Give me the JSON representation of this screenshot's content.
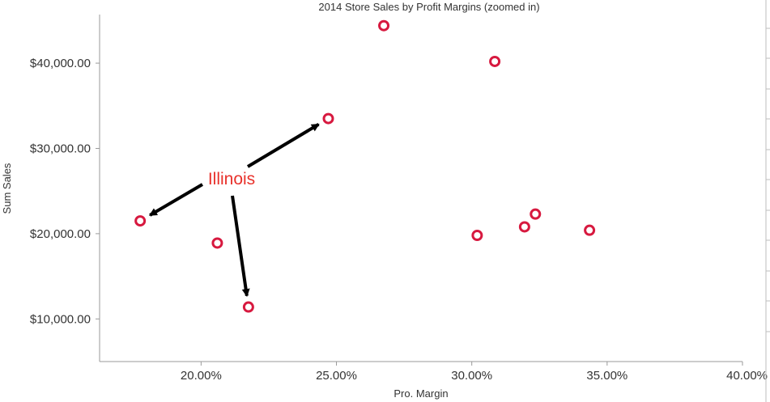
{
  "chart_data": {
    "type": "scatter",
    "title": "2014 Store Sales by Profit Margins (zoomed in)",
    "xlabel": "Pro. Margin",
    "ylabel": "Sum Sales",
    "xlim": [
      0.1625,
      0.4
    ],
    "ylim": [
      5000,
      45700
    ],
    "x_ticks": [
      0.2,
      0.25,
      0.3,
      0.35,
      0.4
    ],
    "x_tick_labels": [
      "20.00%",
      "25.00%",
      "30.00%",
      "35.00%",
      "40.00%"
    ],
    "y_ticks": [
      10000,
      20000,
      30000,
      40000
    ],
    "y_tick_labels": [
      "$10,000.00",
      "$20,000.00",
      "$30,000.00",
      "$40,000.00"
    ],
    "grid": false,
    "marker_color": "#d7193f",
    "points": [
      {
        "x": 0.1775,
        "y": 21500
      },
      {
        "x": 0.206,
        "y": 18900
      },
      {
        "x": 0.2175,
        "y": 11400
      },
      {
        "x": 0.247,
        "y": 33500
      },
      {
        "x": 0.2675,
        "y": 44400
      },
      {
        "x": 0.3085,
        "y": 40200
      },
      {
        "x": 0.302,
        "y": 19800
      },
      {
        "x": 0.3195,
        "y": 20800
      },
      {
        "x": 0.3235,
        "y": 22300
      },
      {
        "x": 0.3435,
        "y": 20400
      }
    ],
    "annotation": {
      "text": "Illinois",
      "color": "#e8312b",
      "arrow_color": "#000000",
      "target_points": [
        0,
        2,
        3
      ]
    }
  }
}
